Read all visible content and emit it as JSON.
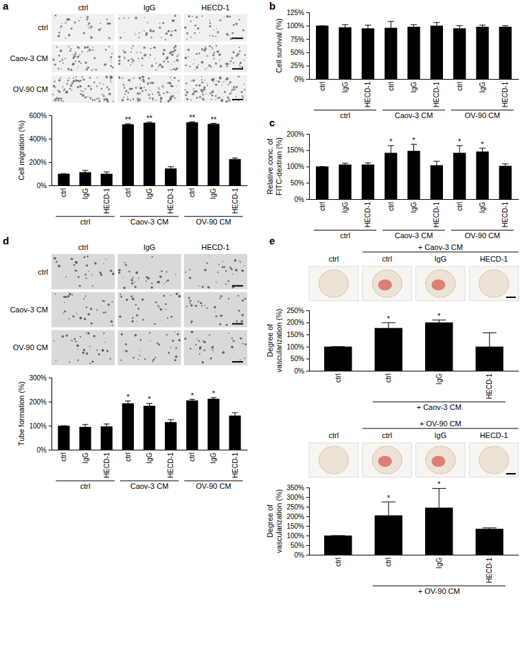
{
  "chart_data": [
    {
      "type": "bar",
      "title": "a",
      "y_label": "Cell migration (%)",
      "categories": [
        "ctrl",
        "IgG",
        "HECD-1",
        "ctrl",
        "IgG",
        "HECD-1",
        "ctrl",
        "IgG",
        "HECD-1"
      ],
      "group_labels": [
        "ctrl",
        "ctrl",
        "ctrl",
        "Caov-3 CM",
        "Caov-3 CM",
        "Caov-3 CM",
        "OV-90 CM",
        "OV-90 CM",
        "OV-90 CM"
      ],
      "values": [
        100,
        113,
        100,
        523,
        537,
        145,
        540,
        527,
        225
      ],
      "errors": [
        0,
        15,
        15,
        5,
        5,
        15,
        5,
        5,
        10
      ],
      "annotations": [
        null,
        null,
        null,
        "**",
        "**",
        null,
        "**",
        "**",
        null
      ],
      "color": "#000000",
      "ylim": [
        0,
        600
      ],
      "yticks": [
        {
          "value": 0,
          "label": "0%"
        },
        {
          "value": 200,
          "label": "200%"
        },
        {
          "value": 400,
          "label": "400%"
        },
        {
          "value": 600,
          "label": "600%"
        }
      ],
      "micrograph": {
        "columns": [
          "ctrl",
          "IgG",
          "HECD-1"
        ],
        "rows": [
          "ctrl",
          "Caov-3 CM",
          "OV-90 CM"
        ]
      }
    },
    {
      "type": "bar",
      "title": "b",
      "y_label": "Cell survival (%)",
      "categories": [
        "ctrl",
        "IgG",
        "HECD-1",
        "ctrl",
        "IgG",
        "HECD-1",
        "ctrl",
        "IgG",
        "HECD-1"
      ],
      "group_labels": [
        "ctrl",
        "ctrl",
        "ctrl",
        "Caov-3 CM",
        "Caov-3 CM",
        "Caov-3 CM",
        "OV-90 CM",
        "OV-90 CM",
        "OV-90 CM"
      ],
      "values": [
        100,
        97,
        95,
        96,
        98,
        100,
        95,
        98,
        98
      ],
      "errors": [
        0,
        5,
        6,
        12,
        4,
        6,
        5,
        3,
        2
      ],
      "color": "#000000",
      "ylim": [
        0,
        125
      ],
      "yticks": [
        {
          "value": 0,
          "label": "0%"
        },
        {
          "value": 25,
          "label": "25%"
        },
        {
          "value": 50,
          "label": "50%"
        },
        {
          "value": 75,
          "label": "75%"
        },
        {
          "value": 100,
          "label": "100%"
        },
        {
          "value": 125,
          "label": "125%"
        }
      ]
    },
    {
      "type": "bar",
      "title": "c",
      "y_label": "Relative conc. of FITC-dextran (%)",
      "categories": [
        "ctrl",
        "IgG",
        "HECD-1",
        "ctrl",
        "IgG",
        "HECD-1",
        "ctrl",
        "IgG",
        "HECD-1"
      ],
      "group_labels": [
        "ctrl",
        "ctrl",
        "ctrl",
        "Caov-3 CM",
        "Caov-3 CM",
        "Caov-3 CM",
        "OV-90 CM",
        "OV-90 CM",
        "OV-90 CM"
      ],
      "values": [
        100,
        106,
        106,
        142,
        148,
        104,
        142,
        146,
        102
      ],
      "errors": [
        0,
        4,
        5,
        22,
        20,
        12,
        22,
        10,
        6
      ],
      "annotations": [
        null,
        null,
        null,
        "*",
        "*",
        null,
        "*",
        "*",
        null
      ],
      "color": "#000000",
      "ylim": [
        0,
        200
      ],
      "yticks": [
        {
          "value": 0,
          "label": "0%"
        },
        {
          "value": 50,
          "label": "50%"
        },
        {
          "value": 100,
          "label": "100%"
        },
        {
          "value": 150,
          "label": "150%"
        },
        {
          "value": 200,
          "label": "200%"
        }
      ]
    },
    {
      "type": "bar",
      "title": "d",
      "y_label": "Tube formation (%)",
      "categories": [
        "ctrl",
        "IgG",
        "HECD-1",
        "ctrl",
        "IgG",
        "HECD-1",
        "ctrl",
        "IgG",
        "HECD-1"
      ],
      "group_labels": [
        "ctrl",
        "ctrl",
        "ctrl",
        "Caov-3 CM",
        "Caov-3 CM",
        "Caov-3 CM",
        "OV-90 CM",
        "OV-90 CM",
        "OV-90 CM"
      ],
      "values": [
        100,
        95,
        97,
        193,
        183,
        115,
        205,
        212,
        142
      ],
      "errors": [
        0,
        10,
        10,
        10,
        10,
        10,
        5,
        5,
        12
      ],
      "annotations": [
        null,
        null,
        null,
        "*",
        "*",
        null,
        "*",
        "*",
        null
      ],
      "color": "#000000",
      "ylim": [
        0,
        300
      ],
      "yticks": [
        {
          "value": 0,
          "label": "0%"
        },
        {
          "value": 100,
          "label": "100%"
        },
        {
          "value": 200,
          "label": "200%"
        },
        {
          "value": 300,
          "label": "300%"
        }
      ],
      "micrograph": {
        "columns": [
          "ctrl",
          "IgG",
          "HECD-1"
        ],
        "rows": [
          "ctrl",
          "Caov-3 CM",
          "OV-90 CM"
        ]
      }
    },
    {
      "type": "bar",
      "title": "e",
      "y_label": "Degree of vascularization (%)",
      "categories": [
        "ctrl",
        "ctrl",
        "IgG",
        "HECD-1"
      ],
      "group_labels": [
        null,
        "+ Caov-3 CM",
        "+ Caov-3 CM",
        "+ Caov-3 CM"
      ],
      "values": [
        100,
        177,
        200,
        100
      ],
      "errors": [
        0,
        22,
        10,
        57
      ],
      "annotations": [
        null,
        "*",
        "*",
        null
      ],
      "color": "#000000",
      "ylim": [
        0,
        250
      ],
      "yticks": [
        {
          "value": 0,
          "label": "0%"
        },
        {
          "value": 50,
          "label": "50%"
        },
        {
          "value": 100,
          "label": "100%"
        },
        {
          "value": 150,
          "label": "150%"
        },
        {
          "value": 200,
          "label": "200%"
        },
        {
          "value": 250,
          "label": "250%"
        }
      ],
      "micrograph": {
        "columns": [
          "ctrl",
          "ctrl",
          "IgG",
          "HECD-1"
        ],
        "column_groups": [
          null,
          "+ Caov-3 CM",
          "+ Caov-3 CM",
          "+ Caov-3 CM"
        ]
      }
    },
    {
      "type": "bar",
      "y_label": "Degree of vascularization (%)",
      "categories": [
        "ctrl",
        "ctrl",
        "IgG",
        "HECD-1"
      ],
      "group_labels": [
        null,
        "+ OV-90 CM",
        "+ OV-90 CM",
        "+ OV-90 CM"
      ],
      "values": [
        100,
        205,
        245,
        135
      ],
      "errors": [
        0,
        70,
        100,
        5
      ],
      "annotations": [
        null,
        "*",
        "*",
        null
      ],
      "color": "#000000",
      "ylim": [
        0,
        350
      ],
      "yticks": [
        {
          "value": 0,
          "label": "0%"
        },
        {
          "value": 50,
          "label": "50%"
        },
        {
          "value": 100,
          "label": "100%"
        },
        {
          "value": 150,
          "label": "150%"
        },
        {
          "value": 200,
          "label": "200%"
        },
        {
          "value": 250,
          "label": "250%"
        },
        {
          "value": 300,
          "label": "300%"
        },
        {
          "value": 350,
          "label": "350%"
        }
      ],
      "micrograph": {
        "columns": [
          "ctrl",
          "ctrl",
          "IgG",
          "HECD-1"
        ],
        "column_groups": [
          null,
          "+ OV-90 CM",
          "+ OV-90 CM",
          "+ OV-90 CM"
        ]
      }
    }
  ]
}
